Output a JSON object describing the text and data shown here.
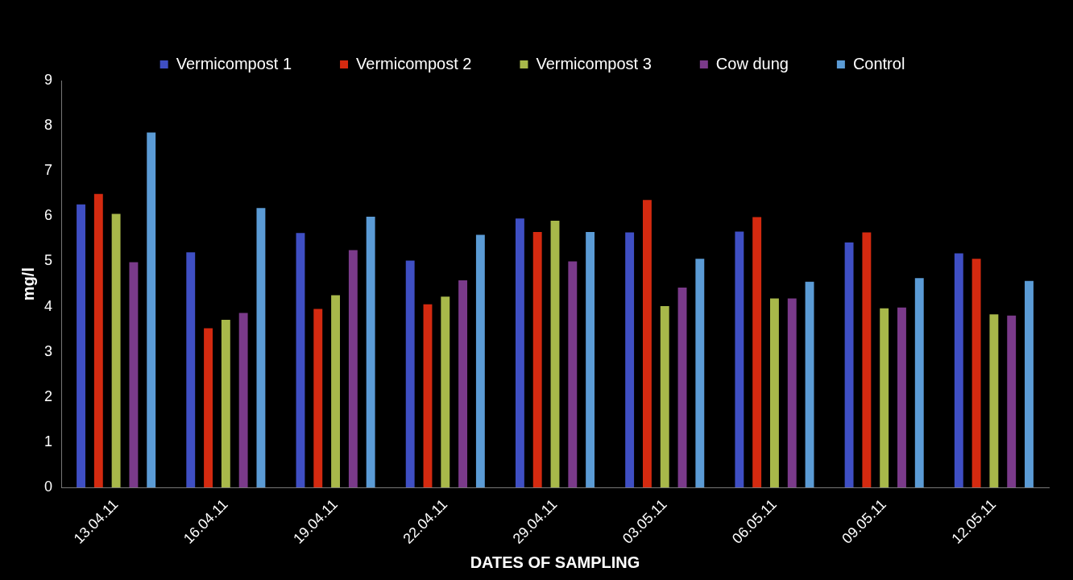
{
  "chart_data": {
    "type": "bar",
    "xlabel": "DATES OF SAMPLING",
    "ylabel": "mg/l",
    "categories": [
      "13.04.11",
      "16.04.11",
      "19.04.11",
      "22.04.11",
      "29.04.11",
      "03.05.11",
      "06.05.11",
      "09.05.11",
      "12.05.11"
    ],
    "series": [
      {
        "name": "Vermicompost 1",
        "color": "#3f4fc4",
        "values": [
          6.26,
          5.2,
          5.63,
          5.02,
          5.95,
          5.64,
          5.66,
          5.42,
          5.18
        ]
      },
      {
        "name": "Vermicompost 2",
        "color": "#d42a10",
        "values": [
          6.49,
          3.52,
          3.95,
          4.05,
          5.65,
          6.36,
          5.98,
          5.64,
          5.06
        ]
      },
      {
        "name": "Vermicompost 3",
        "color": "#a8b84a",
        "values": [
          6.05,
          3.71,
          4.25,
          4.22,
          5.9,
          4.01,
          4.18,
          3.96,
          3.83
        ]
      },
      {
        "name": "Cow dung",
        "color": "#7a3a8a",
        "values": [
          4.98,
          3.86,
          5.25,
          4.58,
          5.0,
          4.42,
          4.18,
          3.98,
          3.8
        ]
      },
      {
        "name": "Control",
        "color": "#5b9bd5",
        "values": [
          7.85,
          6.18,
          5.99,
          5.59,
          5.65,
          5.06,
          4.55,
          4.63,
          4.57
        ]
      }
    ],
    "ylim": [
      0,
      9
    ],
    "yticks": [
      0,
      1,
      2,
      3,
      4,
      5,
      6,
      7,
      8,
      9
    ],
    "grid": false,
    "legend": "top"
  }
}
